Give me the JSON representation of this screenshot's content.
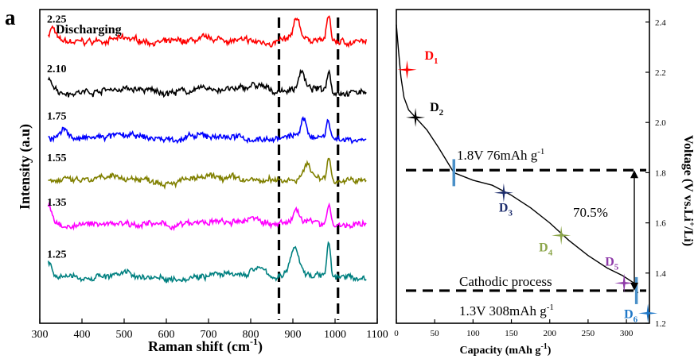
{
  "panel_label": "a",
  "colors": {
    "red": "#ff0000",
    "black": "#000000",
    "blue": "#0000ff",
    "olive": "#808000",
    "magenta": "#ff00ff",
    "teal": "#008080",
    "d3_navy": "#1f2f6e",
    "d4_green": "#8ca64b",
    "d5_purple": "#8e3aa8",
    "d6_blue": "#1f78c8",
    "marker_blue": "#4a90c8"
  },
  "chart_data": [
    {
      "type": "line",
      "title": "Discharging",
      "xlabel": "Raman shift (cm",
      "xlabel_sup": "-1",
      "xlabel_close": ")",
      "ylabel": "Intensity (a.u)",
      "xlim": [
        300,
        1100
      ],
      "ylim": [
        0,
        6
      ],
      "xticks": [
        "300",
        "400",
        "500",
        "600",
        "700",
        "800",
        "900",
        "1000",
        "1100"
      ],
      "grid": false,
      "series": [
        {
          "name": "2.25",
          "color": "red",
          "offset": 5.4,
          "peaks": [
            [
              330,
              0.26,
              10
            ],
            [
              910,
              0.38,
              11
            ],
            [
              985,
              0.48,
              6
            ]
          ]
        },
        {
          "name": "2.10",
          "color": "black",
          "offset": 4.45,
          "peaks": [
            [
              325,
              0.18,
              14
            ],
            [
              810,
              0.12,
              30
            ],
            [
              920,
              0.36,
              10
            ],
            [
              985,
              0.4,
              6
            ]
          ]
        },
        {
          "name": "1.75",
          "color": "blue",
          "offset": 3.55,
          "peaks": [
            [
              360,
              0.18,
              14
            ],
            [
              925,
              0.3,
              10
            ],
            [
              983,
              0.36,
              6
            ]
          ]
        },
        {
          "name": "1.55",
          "color": "olive",
          "offset": 2.75,
          "peaks": [
            [
              935,
              0.28,
              11
            ],
            [
              985,
              0.42,
              6
            ]
          ]
        },
        {
          "name": "1.35",
          "color": "magenta",
          "offset": 1.9,
          "peaks": [
            [
              320,
              0.34,
              12
            ],
            [
              810,
              0.16,
              25
            ],
            [
              910,
              0.26,
              12
            ],
            [
              985,
              0.4,
              6
            ]
          ]
        },
        {
          "name": "1.25",
          "color": "teal",
          "offset": 0.9,
          "peaks": [
            [
              320,
              0.3,
              12
            ],
            [
              815,
              0.18,
              25
            ],
            [
              905,
              0.55,
              14
            ],
            [
              985,
              0.62,
              6
            ]
          ]
        }
      ],
      "dashed_lines_x": [
        867,
        1007
      ]
    },
    {
      "type": "line",
      "xlabel": "Capacity (mAh g",
      "xlabel_sup": "-1",
      "xlabel_close": ")",
      "ylabel": "Voltage (V vs.Li",
      "ylabel_sup": "+",
      "ylabel_close": "/Li)",
      "xlim": [
        0,
        330
      ],
      "ylim": [
        1.2,
        2.45
      ],
      "xticks": [
        "0",
        "50",
        "100",
        "150",
        "200",
        "250",
        "300"
      ],
      "yticks": [
        "1.2",
        "1.4",
        "1.6",
        "1.8",
        "2.0",
        "2.2",
        "2.4"
      ],
      "grid": false,
      "curve": [
        [
          0,
          2.39
        ],
        [
          3,
          2.28
        ],
        [
          6,
          2.18
        ],
        [
          10,
          2.1
        ],
        [
          16,
          2.05
        ],
        [
          25,
          2.02
        ],
        [
          40,
          1.97
        ],
        [
          55,
          1.9
        ],
        [
          75,
          1.8
        ],
        [
          100,
          1.77
        ],
        [
          125,
          1.75
        ],
        [
          150,
          1.71
        ],
        [
          175,
          1.66
        ],
        [
          200,
          1.6
        ],
        [
          225,
          1.53
        ],
        [
          250,
          1.47
        ],
        [
          275,
          1.42
        ],
        [
          295,
          1.39
        ],
        [
          310,
          1.36
        ],
        [
          315,
          1.32
        ]
      ],
      "points": [
        {
          "label": "D",
          "sub": "1",
          "x": 14,
          "y": 2.21,
          "color": "red"
        },
        {
          "label": "D",
          "sub": "2",
          "x": 25,
          "y": 2.02,
          "color": "black"
        },
        {
          "label": "D",
          "sub": "3",
          "x": 140,
          "y": 1.72,
          "color": "d3_navy"
        },
        {
          "label": "D",
          "sub": "4",
          "x": 215,
          "y": 1.55,
          "color": "d4_green"
        },
        {
          "label": "D",
          "sub": "5",
          "x": 297,
          "y": 1.36,
          "color": "d5_purple"
        },
        {
          "label": "D",
          "sub": "6",
          "x": 328,
          "y": 1.24,
          "color": "d6_blue"
        }
      ],
      "markers": [
        {
          "x": 75,
          "y": 1.8
        },
        {
          "x": 313,
          "y": 1.33
        }
      ],
      "dashed_y": [
        1.81,
        1.33
      ],
      "annotations": {
        "upper_line": "1.8V 76mAh g",
        "upper_line_sup": "-1",
        "lower_line": "1.3V 308mAh g",
        "lower_line_sup": "-1",
        "process": "Cathodic process",
        "percent": "70.5%"
      }
    }
  ]
}
